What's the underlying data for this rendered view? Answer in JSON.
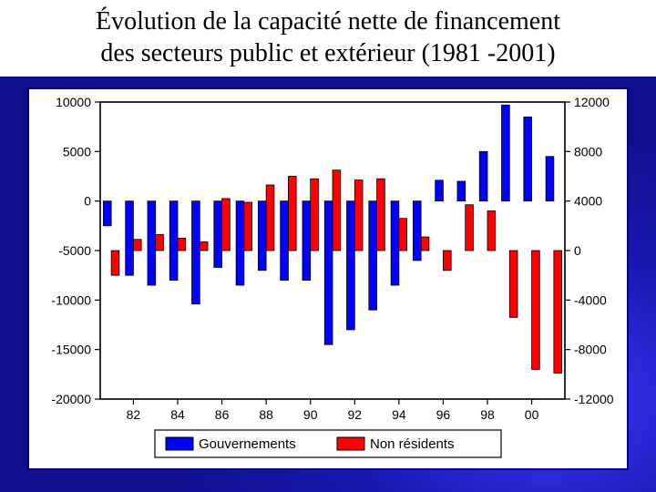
{
  "title_line1": "Évolution de la capacité nette de financement",
  "title_line2": "des secteurs public et extérieur (1981 -2001)",
  "chart": {
    "type": "bar",
    "background_color": "#ffffff",
    "frame_color": "#000080",
    "plot_border_color": "#000000",
    "grid_color": "#000000",
    "axis_font_family": "Arial",
    "axis_font_size": 14,
    "left_axis": {
      "min": -20000,
      "max": 10000,
      "ticks": [
        -20000,
        -15000,
        -10000,
        -5000,
        0,
        5000,
        10000
      ]
    },
    "right_axis": {
      "min": -12000,
      "max": 12000,
      "ticks": [
        -12000,
        -8000,
        -4000,
        0,
        4000,
        8000,
        12000
      ]
    },
    "x_ticks": [
      "82",
      "84",
      "86",
      "88",
      "90",
      "92",
      "94",
      "96",
      "98",
      "00"
    ],
    "series": [
      {
        "name": "Gouvernements",
        "color": "#0000ff",
        "axis": "left",
        "values": [
          -2500,
          -7500,
          -8500,
          -8000,
          -10400,
          -6700,
          -8500,
          -7000,
          -8000,
          -8000,
          -14500,
          -13000,
          -11000,
          -8500,
          -6000,
          2100,
          2000,
          5000,
          9700,
          8500,
          4500
        ]
      },
      {
        "name": "Non résidents",
        "color": "#ff0000",
        "axis": "right",
        "values": [
          -2000,
          900,
          1300,
          1000,
          700,
          4200,
          3900,
          5300,
          6000,
          5800,
          6500,
          5700,
          5800,
          2600,
          1100,
          -1600,
          3700,
          3200,
          -5400,
          -9600,
          -9900
        ]
      }
    ],
    "bar_width": 0.36,
    "legend": {
      "labels": [
        "Gouvernements",
        "Non résidents"
      ],
      "colors": [
        "#0000ff",
        "#ff0000"
      ],
      "box_border_color": "#000000",
      "swatch_border_color": "#000000",
      "font_size": 15
    }
  }
}
